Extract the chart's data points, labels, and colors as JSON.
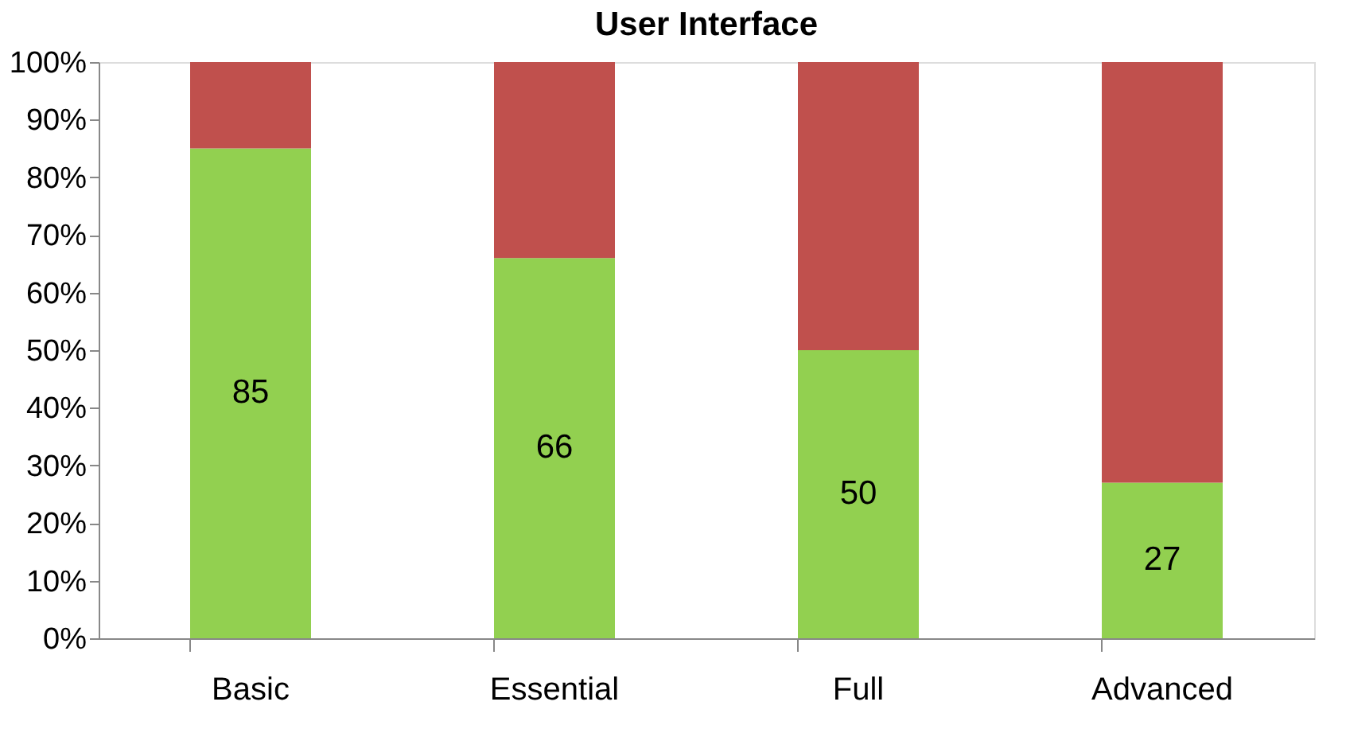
{
  "chart_data": {
    "type": "bar",
    "title": "User Interface",
    "stacked": true,
    "categories": [
      "Basic",
      "Essential",
      "Full",
      "Advanced"
    ],
    "series": [
      {
        "color": "#92d050",
        "values": [
          85,
          66,
          50,
          27
        ],
        "value_labels": [
          "85",
          "66",
          "50",
          "27"
        ]
      },
      {
        "color": "#c0504d",
        "values": [
          15,
          34,
          50,
          73
        ]
      }
    ],
    "ylim": [
      0,
      100
    ],
    "yticks": [
      {
        "value": 0,
        "label": "0%"
      },
      {
        "value": 10,
        "label": "10%"
      },
      {
        "value": 20,
        "label": "20%"
      },
      {
        "value": 30,
        "label": "30%"
      },
      {
        "value": 40,
        "label": "40%"
      },
      {
        "value": 50,
        "label": "50%"
      },
      {
        "value": 60,
        "label": "60%"
      },
      {
        "value": 70,
        "label": "70%"
      },
      {
        "value": 80,
        "label": "80%"
      },
      {
        "value": 90,
        "label": "90%"
      },
      {
        "value": 100,
        "label": "100%"
      }
    ],
    "grid": false
  }
}
